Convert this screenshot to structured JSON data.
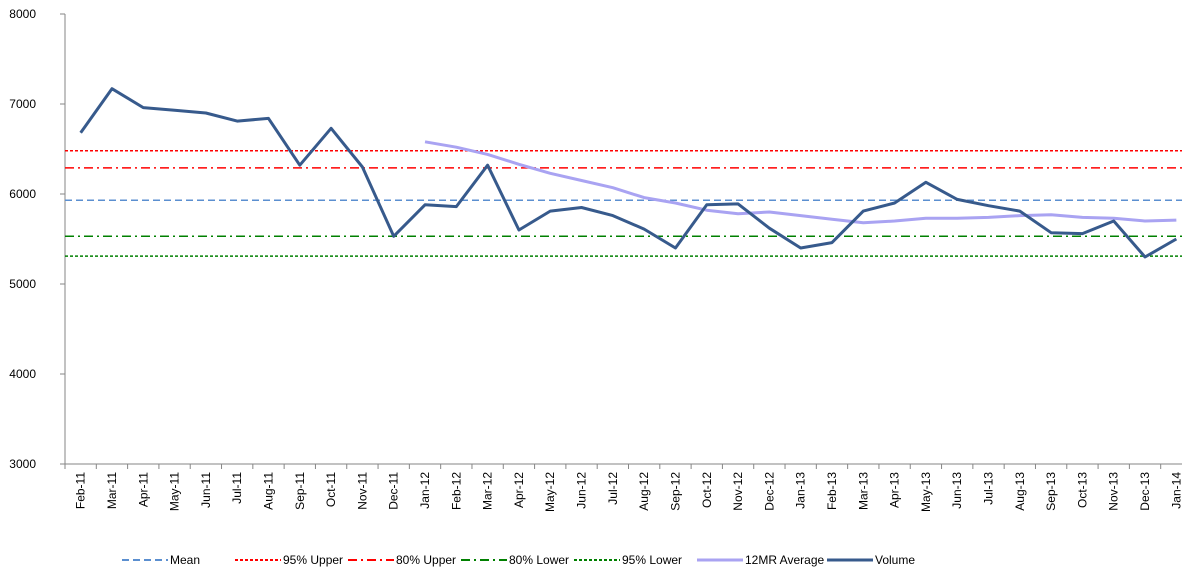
{
  "chart_data": {
    "type": "line",
    "categories": [
      "Feb-11",
      "Mar-11",
      "Apr-11",
      "May-11",
      "Jun-11",
      "Jul-11",
      "Aug-11",
      "Sep-11",
      "Oct-11",
      "Nov-11",
      "Dec-11",
      "Jan-12",
      "Feb-12",
      "Mar-12",
      "Apr-12",
      "May-12",
      "Jun-12",
      "Jul-12",
      "Aug-12",
      "Sep-12",
      "Oct-12",
      "Nov-12",
      "Dec-12",
      "Jan-13",
      "Feb-13",
      "Mar-13",
      "Apr-13",
      "May-13",
      "Jun-13",
      "Jul-13",
      "Aug-13",
      "Sep-13",
      "Oct-13",
      "Nov-13",
      "Dec-13",
      "Jan-14"
    ],
    "series": [
      {
        "name": "Mean",
        "color": "#5b8fd0",
        "style": "dashed",
        "value": 5930
      },
      {
        "name": "95% Upper",
        "color": "#ff0000",
        "style": "dotted",
        "value": 6480
      },
      {
        "name": "80% Upper",
        "color": "#ff0000",
        "style": "dashdot",
        "value": 6290
      },
      {
        "name": "80% Lower",
        "color": "#008000",
        "style": "dashdot",
        "value": 5530
      },
      {
        "name": "95% Lower",
        "color": "#008000",
        "style": "dotted",
        "value": 5310
      },
      {
        "name": "12MR Average",
        "color": "#a9a3f2",
        "style": "solid",
        "values": [
          null,
          null,
          null,
          null,
          null,
          null,
          null,
          null,
          null,
          null,
          null,
          6580,
          6520,
          6440,
          6330,
          6230,
          6150,
          6070,
          5960,
          5900,
          5820,
          5780,
          5800,
          5760,
          5720,
          5680,
          5700,
          5730,
          5730,
          5740,
          5760,
          5770,
          5740,
          5730,
          5700,
          5710
        ]
      },
      {
        "name": "Volume",
        "color": "#375a8c",
        "style": "solid",
        "values": [
          6680,
          7170,
          6960,
          6930,
          6900,
          6810,
          6840,
          6320,
          6730,
          6300,
          5530,
          5880,
          5860,
          6320,
          5600,
          5810,
          5850,
          5760,
          5610,
          5400,
          5880,
          5890,
          5620,
          5400,
          5460,
          5810,
          5900,
          6130,
          5940,
          5870,
          5810,
          5570,
          5560,
          5700,
          5300,
          5500
        ]
      }
    ],
    "ylim": [
      3000,
      8000
    ],
    "yticks": [
      3000,
      4000,
      5000,
      6000,
      7000,
      8000
    ],
    "grid": false
  }
}
